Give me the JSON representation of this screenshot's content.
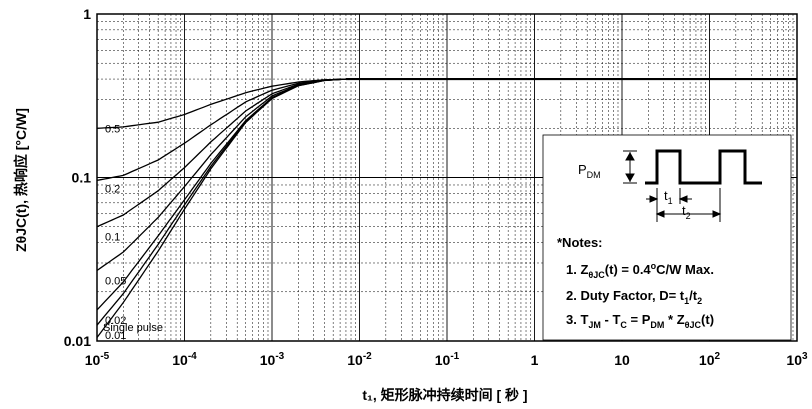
{
  "chart_data": {
    "type": "line",
    "xscale": "log",
    "yscale": "log",
    "xlim": [
      1e-05,
      1000
    ],
    "ylim": [
      0.01,
      1
    ],
    "grid": true,
    "xlabel": "t₁, 矩形脉冲持续时间 [ 秒 ]",
    "ylabel": "ZθJC(t), 热响应 [°C/W]",
    "xticks": [
      {
        "value": 1e-05,
        "base": "10",
        "exp": "-5"
      },
      {
        "value": 0.0001,
        "base": "10",
        "exp": "-4"
      },
      {
        "value": 0.001,
        "base": "10",
        "exp": "-3"
      },
      {
        "value": 0.01,
        "base": "10",
        "exp": "-2"
      },
      {
        "value": 0.1,
        "base": "10",
        "exp": "-1"
      },
      {
        "value": 1,
        "base": "1",
        "exp": ""
      },
      {
        "value": 10,
        "base": "10",
        "exp": ""
      },
      {
        "value": 100,
        "base": "10",
        "exp": "2"
      },
      {
        "value": 1000,
        "base": "10",
        "exp": "3"
      }
    ],
    "yticks": [
      {
        "value": 1,
        "label": "1"
      },
      {
        "value": 0.1,
        "label": "0.1"
      },
      {
        "value": 0.01,
        "label": "0.01"
      }
    ],
    "series": [
      {
        "name": "0.5",
        "points": [
          [
            1e-05,
            0.2
          ],
          [
            2e-05,
            0.204
          ],
          [
            5e-05,
            0.218
          ],
          [
            0.0001,
            0.243
          ],
          [
            0.0002,
            0.28
          ],
          [
            0.0005,
            0.33
          ],
          [
            0.001,
            0.362
          ],
          [
            0.002,
            0.384
          ],
          [
            0.004,
            0.396
          ],
          [
            0.007,
            0.4
          ],
          [
            1000,
            0.4
          ]
        ]
      },
      {
        "name": "0.2",
        "points": [
          [
            1e-05,
            0.096
          ],
          [
            2e-05,
            0.103
          ],
          [
            5e-05,
            0.128
          ],
          [
            0.0001,
            0.162
          ],
          [
            0.0002,
            0.21
          ],
          [
            0.0005,
            0.29
          ],
          [
            0.001,
            0.342
          ],
          [
            0.002,
            0.377
          ],
          [
            0.004,
            0.395
          ],
          [
            0.007,
            0.4
          ],
          [
            1000,
            0.4
          ]
        ]
      },
      {
        "name": "0.1",
        "points": [
          [
            1e-05,
            0.05
          ],
          [
            2e-05,
            0.059
          ],
          [
            5e-05,
            0.083
          ],
          [
            0.0001,
            0.115
          ],
          [
            0.0002,
            0.165
          ],
          [
            0.0005,
            0.255
          ],
          [
            0.001,
            0.325
          ],
          [
            0.002,
            0.372
          ],
          [
            0.004,
            0.394
          ],
          [
            0.007,
            0.4
          ],
          [
            1000,
            0.4
          ]
        ]
      },
      {
        "name": "0.05",
        "points": [
          [
            1e-05,
            0.027
          ],
          [
            2e-05,
            0.035
          ],
          [
            5e-05,
            0.057
          ],
          [
            0.0001,
            0.088
          ],
          [
            0.0002,
            0.138
          ],
          [
            0.0005,
            0.235
          ],
          [
            0.001,
            0.315
          ],
          [
            0.002,
            0.368
          ],
          [
            0.004,
            0.393
          ],
          [
            0.007,
            0.4
          ],
          [
            1000,
            0.4
          ]
        ]
      },
      {
        "name": "0.02",
        "points": [
          [
            1e-05,
            0.0155
          ],
          [
            2e-05,
            0.023
          ],
          [
            5e-05,
            0.044
          ],
          [
            0.0001,
            0.073
          ],
          [
            0.0002,
            0.122
          ],
          [
            0.0005,
            0.223
          ],
          [
            0.001,
            0.308
          ],
          [
            0.002,
            0.366
          ],
          [
            0.004,
            0.393
          ],
          [
            0.007,
            0.4
          ],
          [
            1000,
            0.4
          ]
        ]
      },
      {
        "name": "0.01",
        "points": [
          [
            1e-05,
            0.0125
          ],
          [
            2e-05,
            0.0195
          ],
          [
            5e-05,
            0.039
          ],
          [
            0.0001,
            0.068
          ],
          [
            0.0002,
            0.117
          ],
          [
            0.0005,
            0.22
          ],
          [
            0.001,
            0.306
          ],
          [
            0.002,
            0.365
          ],
          [
            0.004,
            0.393
          ],
          [
            0.007,
            0.4
          ],
          [
            1000,
            0.4
          ]
        ]
      },
      {
        "name": "Single pulse",
        "points": [
          [
            1e-05,
            0.0105
          ],
          [
            2e-05,
            0.0172
          ],
          [
            5e-05,
            0.0355
          ],
          [
            0.0001,
            0.064
          ],
          [
            0.0002,
            0.113
          ],
          [
            0.0005,
            0.217
          ],
          [
            0.001,
            0.304
          ],
          [
            0.002,
            0.364
          ],
          [
            0.004,
            0.392
          ],
          [
            0.007,
            0.4
          ],
          [
            1000,
            0.4
          ]
        ]
      }
    ],
    "inset": {
      "pdm_base": "P",
      "pdm_sub": "DM",
      "t1_base": "t",
      "t1_sub": "1",
      "t2_base": "t",
      "t2_sub": "2"
    },
    "notes": {
      "title": "*Notes:",
      "note1": {
        "a": "1. Z",
        "sub1": "θJC",
        "b": "(t) = 0.4",
        "sup": "o",
        "c": "C/W Max."
      },
      "note2": {
        "a": "2. Duty Factor, D= t",
        "sub1": "1",
        "b": "/t",
        "sub2": "2"
      },
      "note3": {
        "a": "3. T",
        "sub1": "JM",
        "b": " - T",
        "sub2": "C",
        "c": " = P",
        "sub3": "DM",
        "d": " * Z",
        "sub4": "θJC",
        "e": "(t)"
      }
    }
  }
}
